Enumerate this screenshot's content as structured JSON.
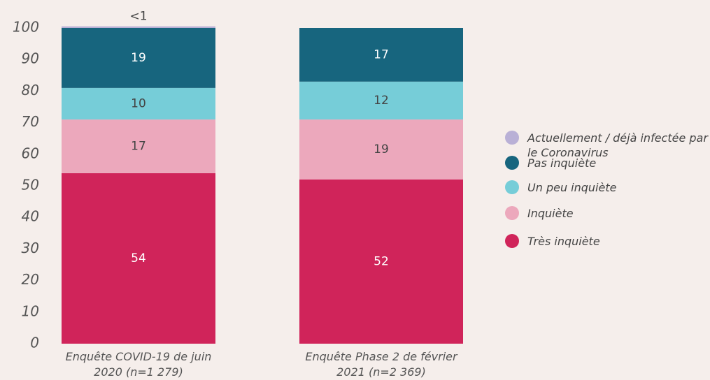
{
  "chart_data": {
    "type": "stacked_bar",
    "categories": [
      "Enquête COVID-19 de juin 2020 (n=1 279)",
      "Enquête Phase 2 de février 2021 (n=2 369)"
    ],
    "series": [
      {
        "name": "Très inquiète",
        "color": "#d0245a",
        "values": [
          54,
          52
        ]
      },
      {
        "name": "Inquiète",
        "color": "#eca8bc",
        "values": [
          17,
          19
        ]
      },
      {
        "name": "Un peu inquiète",
        "color": "#76cdd8",
        "values": [
          10,
          12
        ]
      },
      {
        "name": "Pas inquiète",
        "color": "#17657e",
        "values": [
          19,
          17
        ]
      },
      {
        "name": "Actuellement / déjà infectée par le Coronavirus",
        "color": "#b9b0d6",
        "values": [
          0.5,
          null
        ],
        "value_labels": [
          "<1",
          null
        ]
      }
    ],
    "ylim": [
      0,
      100
    ],
    "yticks": [
      0,
      10,
      20,
      30,
      40,
      50,
      60,
      70,
      80,
      90,
      100
    ]
  }
}
